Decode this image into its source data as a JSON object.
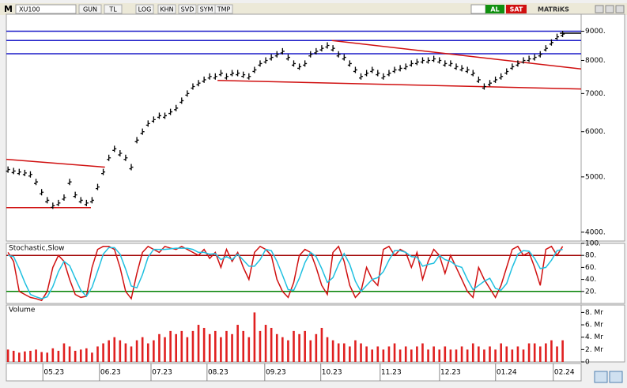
{
  "toolbar": {
    "logo": "M",
    "symbol": "XU100",
    "buttons": [
      "GUN",
      "TL",
      "LOG",
      "KHN",
      "SVD",
      "SYM",
      "TMP"
    ],
    "buy": "AL",
    "sell": "SAT",
    "brand": "MATRiKS"
  },
  "chart_data": [
    {
      "type": "tick",
      "log": true,
      "color": "#000000",
      "ylim": [
        3860,
        9640
      ],
      "yticks": [
        {
          "value": 9000,
          "label": "9000."
        },
        {
          "value": 8000,
          "label": "8000."
        },
        {
          "value": 7000,
          "label": "7000."
        },
        {
          "value": 6000,
          "label": "6000."
        },
        {
          "value": 5000,
          "label": "5000."
        },
        {
          "value": 4000,
          "label": "4000."
        }
      ],
      "values": [
        5150,
        5120,
        5100,
        5080,
        5050,
        4900,
        4700,
        4550,
        4450,
        4500,
        4600,
        4900,
        4650,
        4550,
        4500,
        4550,
        4800,
        5100,
        5400,
        5600,
        5500,
        5400,
        5200,
        5800,
        6000,
        6200,
        6300,
        6400,
        6400,
        6500,
        6600,
        6800,
        7000,
        7200,
        7300,
        7400,
        7500,
        7500,
        7600,
        7500,
        7600,
        7600,
        7550,
        7500,
        7700,
        7900,
        8000,
        8100,
        8200,
        8300,
        8100,
        7900,
        7800,
        7900,
        8200,
        8300,
        8400,
        8500,
        8400,
        8200,
        8100,
        7900,
        7700,
        7500,
        7600,
        7700,
        7600,
        7500,
        7600,
        7700,
        7750,
        7800,
        7900,
        7950,
        8000,
        8000,
        8050,
        8000,
        7900,
        7900,
        7800,
        7750,
        7700,
        7600,
        7400,
        7200,
        7300,
        7400,
        7500,
        7650,
        7800,
        7900,
        8000,
        8050,
        8100,
        8200,
        8400,
        8600,
        8800,
        8900
      ],
      "lines": [
        {
          "color": "#1c1cc8",
          "x": [
            -0.3,
            102.3
          ],
          "y": [
            9000,
            9000
          ]
        },
        {
          "color": "#1c1cc8",
          "x": [
            -0.3,
            102.3
          ],
          "y": [
            8670,
            8670
          ]
        },
        {
          "color": "#1c1cc8",
          "x": [
            -0.3,
            102.3
          ],
          "y": [
            8220,
            8220
          ]
        },
        {
          "color": "#d01010",
          "x": [
            -0.3,
            17.3
          ],
          "y": [
            5367,
            5200
          ]
        },
        {
          "color": "#d01010",
          "x": [
            -0.3,
            14.8
          ],
          "y": [
            4417,
            4417
          ]
        },
        {
          "color": "#d01010",
          "x": [
            37.4,
            102.3
          ],
          "y": [
            7380,
            7130
          ]
        },
        {
          "color": "#d01010",
          "x": [
            57.8,
            102.3
          ],
          "y": [
            8670,
            7730
          ]
        },
        {
          "color": "#000000",
          "x": [
            98.5,
            102.3
          ],
          "y": [
            8930,
            8930
          ]
        }
      ]
    },
    {
      "type": "line",
      "title": "Stochastic,Slow",
      "ylim": [
        0,
        100
      ],
      "yticks": [
        {
          "value": 100,
          "label": "100."
        },
        {
          "value": 80,
          "label": "80."
        },
        {
          "value": 60,
          "label": "60."
        },
        {
          "value": 40,
          "label": "40."
        },
        {
          "value": 20,
          "label": "20."
        }
      ],
      "hlines": [
        {
          "value": 80,
          "color": "#a00000"
        },
        {
          "value": 20,
          "color": "#008000"
        }
      ],
      "series": [
        {
          "color": "#d01010",
          "values": [
            85,
            70,
            20,
            15,
            10,
            8,
            5,
            20,
            60,
            80,
            70,
            40,
            15,
            10,
            12,
            60,
            90,
            95,
            95,
            90,
            60,
            20,
            8,
            50,
            85,
            95,
            90,
            85,
            95,
            92,
            90,
            95,
            90,
            85,
            80,
            90,
            75,
            85,
            60,
            90,
            70,
            85,
            60,
            40,
            85,
            95,
            90,
            80,
            40,
            20,
            10,
            35,
            80,
            90,
            85,
            60,
            30,
            15,
            85,
            95,
            70,
            30,
            10,
            20,
            60,
            40,
            30,
            90,
            95,
            80,
            90,
            85,
            60,
            85,
            40,
            70,
            90,
            80,
            50,
            80,
            60,
            40,
            20,
            10,
            60,
            40,
            25,
            10,
            30,
            60,
            90,
            95,
            80,
            85,
            60,
            30,
            90,
            95,
            80,
            95
          ]
        },
        {
          "color": "#20c0e0",
          "values": [
            80,
            78,
            58,
            35,
            15,
            11,
            8,
            11,
            28,
            53,
            70,
            63,
            42,
            22,
            12,
            27,
            54,
            82,
            93,
            93,
            82,
            57,
            29,
            26,
            48,
            77,
            90,
            90,
            90,
            91,
            92,
            92,
            92,
            90,
            85,
            85,
            82,
            83,
            73,
            78,
            73,
            82,
            72,
            62,
            62,
            73,
            90,
            88,
            70,
            47,
            23,
            22,
            42,
            68,
            85,
            78,
            58,
            35,
            43,
            65,
            83,
            65,
            37,
            20,
            30,
            40,
            43,
            53,
            72,
            88,
            88,
            85,
            78,
            77,
            62,
            65,
            67,
            80,
            73,
            70,
            63,
            60,
            40,
            23,
            30,
            37,
            42,
            25,
            22,
            33,
            60,
            82,
            88,
            87,
            75,
            58,
            60,
            72,
            88,
            90
          ]
        }
      ]
    },
    {
      "type": "bar",
      "title": "Volume",
      "color": "#e02020",
      "ylim": [
        0,
        9.2
      ],
      "yticks": [
        {
          "value": 8,
          "label": "8. Mr"
        },
        {
          "value": 6,
          "label": "6. Mr"
        },
        {
          "value": 4,
          "label": "4. Mr"
        },
        {
          "value": 2,
          "label": "2. Mr"
        },
        0
      ],
      "values": [
        2.0,
        1.8,
        1.5,
        1.7,
        1.8,
        2.0,
        1.6,
        1.5,
        2.2,
        1.8,
        3.0,
        2.5,
        1.8,
        2.0,
        2.2,
        1.5,
        2.5,
        3.0,
        3.5,
        4.0,
        3.5,
        3.0,
        2.5,
        3.5,
        4.0,
        3.0,
        3.5,
        4.5,
        4.0,
        5.0,
        4.5,
        5.0,
        4.0,
        5.0,
        6.0,
        5.5,
        4.5,
        5.0,
        4.0,
        5.0,
        4.5,
        6.0,
        5.0,
        4.0,
        8.0,
        5.0,
        6.0,
        5.5,
        4.5,
        4.0,
        3.5,
        5.0,
        4.5,
        5.0,
        3.5,
        4.5,
        5.5,
        4.0,
        3.5,
        3.0,
        3.0,
        2.5,
        3.5,
        3.0,
        2.5,
        2.0,
        2.5,
        2.0,
        2.5,
        3.0,
        2.0,
        2.5,
        2.0,
        2.5,
        3.0,
        2.0,
        2.5,
        2.0,
        2.5,
        2.0,
        2.0,
        2.5,
        2.0,
        3.0,
        2.5,
        2.0,
        2.5,
        2.0,
        3.0,
        2.5,
        2.0,
        2.5,
        2.0,
        3.0,
        3.0,
        2.5,
        3.0,
        3.5,
        2.5,
        3.5
      ],
      "xlim": [
        -0.3,
        102.3
      ],
      "xticks": [
        {
          "value": 8.2,
          "label": "05.23"
        },
        {
          "value": 18.3,
          "label": "06.23"
        },
        {
          "value": 27.5,
          "label": "07.23"
        },
        {
          "value": 37.5,
          "label": "08.23"
        },
        {
          "value": 47.8,
          "label": "09.23"
        },
        {
          "value": 57.8,
          "label": "10.23"
        },
        {
          "value": 68.4,
          "label": "11.23"
        },
        {
          "value": 79,
          "label": "12.23"
        },
        {
          "value": 89,
          "label": "01.24"
        },
        {
          "value": 99.3,
          "label": "02.24"
        }
      ]
    }
  ]
}
